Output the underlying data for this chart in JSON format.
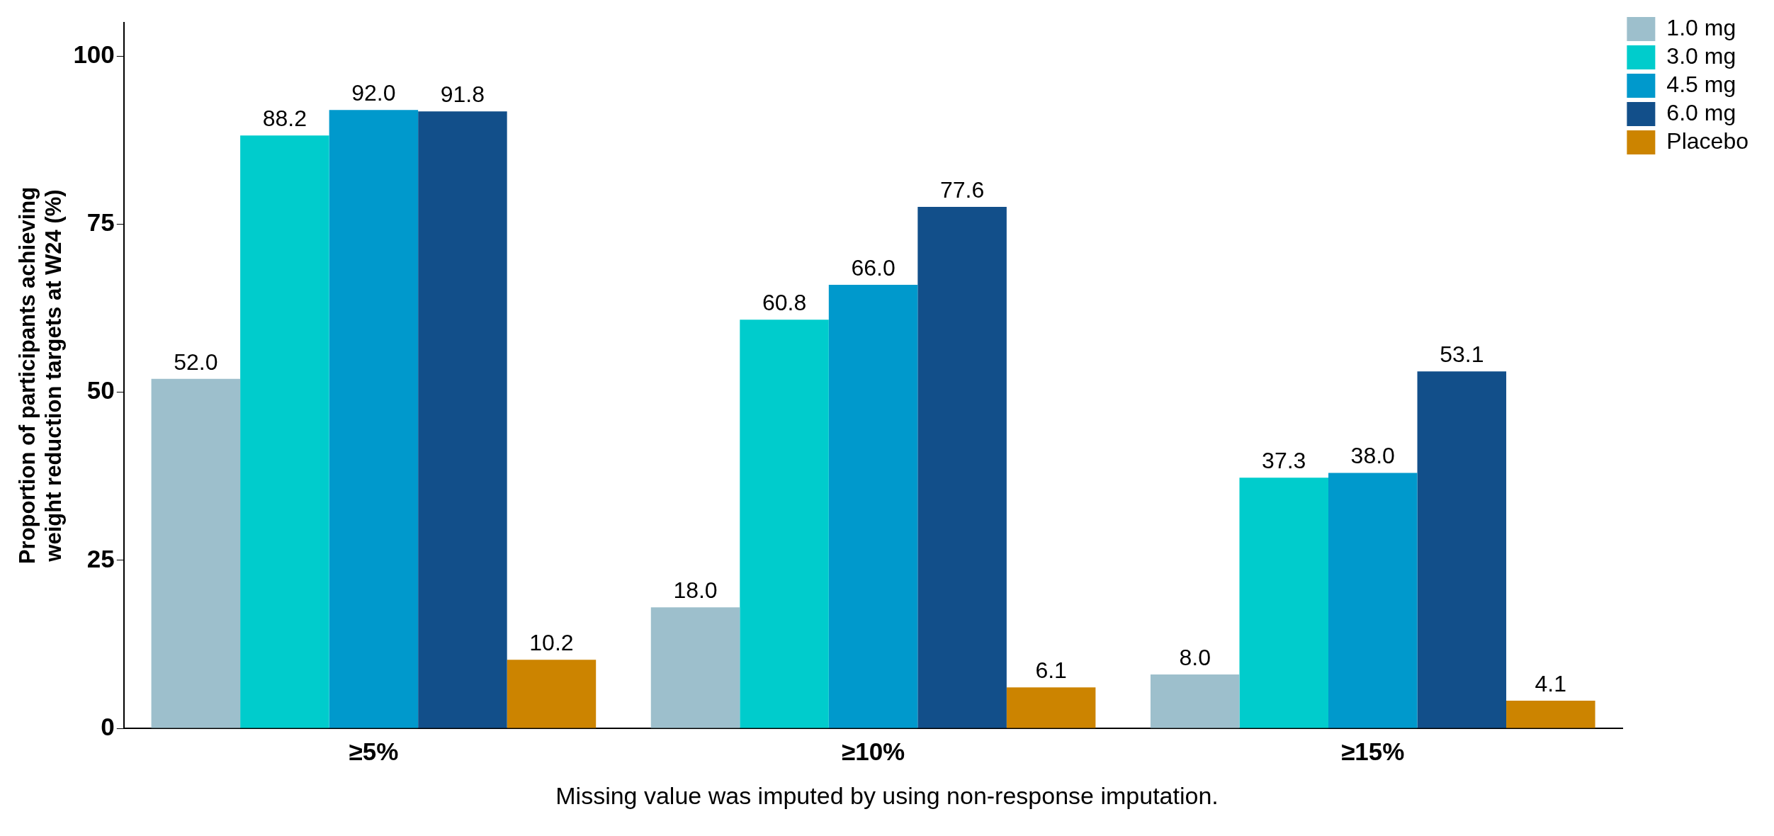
{
  "chart_data": {
    "type": "bar",
    "ylabel": "Proportion of participants achieving weight reduction targets at W24 (%)",
    "categories": [
      "≥5%",
      "≥10%",
      "≥15%"
    ],
    "series": [
      {
        "name": "1.0 mg",
        "color": "#9dbfcc",
        "values": [
          52.0,
          18.0,
          8.0
        ],
        "value_labels": [
          "52.0",
          "18.0",
          "8.0"
        ]
      },
      {
        "name": "3.0 mg",
        "color": "#00cccc",
        "values": [
          88.2,
          60.8,
          37.3
        ],
        "value_labels": [
          "88.2",
          "60.8",
          "37.3"
        ]
      },
      {
        "name": "4.5 mg",
        "color": "#0099cc",
        "values": [
          92.0,
          66.0,
          38.0
        ],
        "value_labels": [
          "92.0",
          "66.0",
          "38.0"
        ]
      },
      {
        "name": "6.0 mg",
        "color": "#124f8a",
        "values": [
          91.8,
          77.6,
          53.1
        ],
        "value_labels": [
          "91.8",
          "77.6",
          "53.1"
        ]
      },
      {
        "name": "Placebo",
        "color": "#cc8400",
        "values": [
          10.2,
          6.1,
          4.1
        ],
        "value_labels": [
          "10.2",
          "6.1",
          "4.1"
        ]
      }
    ],
    "ylim": [
      0,
      105
    ],
    "yticks": [
      0,
      25,
      50,
      75,
      100
    ],
    "grid": false,
    "legend": "top right",
    "annotations": [
      "Missing value was imputed by using non-response imputation."
    ]
  }
}
